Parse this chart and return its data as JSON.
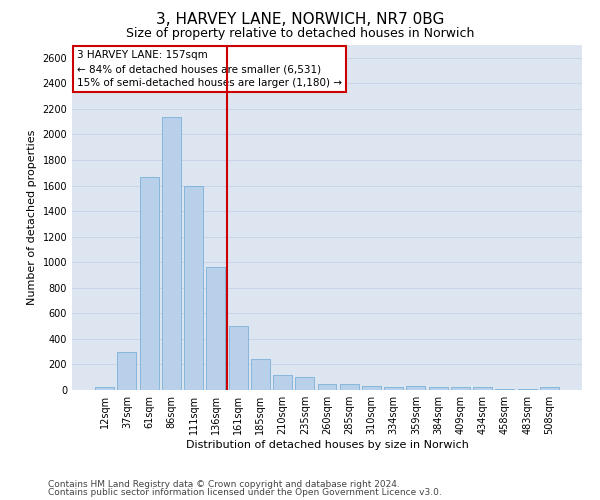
{
  "title_line1": "3, HARVEY LANE, NORWICH, NR7 0BG",
  "title_line2": "Size of property relative to detached houses in Norwich",
  "xlabel": "Distribution of detached houses by size in Norwich",
  "ylabel": "Number of detached properties",
  "categories": [
    "12sqm",
    "37sqm",
    "61sqm",
    "86sqm",
    "111sqm",
    "136sqm",
    "161sqm",
    "185sqm",
    "210sqm",
    "235sqm",
    "260sqm",
    "285sqm",
    "310sqm",
    "334sqm",
    "359sqm",
    "384sqm",
    "409sqm",
    "434sqm",
    "458sqm",
    "483sqm",
    "508sqm"
  ],
  "values": [
    25,
    295,
    1670,
    2140,
    1595,
    960,
    500,
    245,
    120,
    100,
    50,
    50,
    35,
    20,
    30,
    25,
    20,
    20,
    5,
    5,
    25
  ],
  "bar_color": "#b8d0ea",
  "bar_edge_color": "#6aaad4",
  "vline_color": "#cc0000",
  "annotation_text": "3 HARVEY LANE: 157sqm\n← 84% of detached houses are smaller (6,531)\n15% of semi-detached houses are larger (1,180) →",
  "annotation_box_color": "white",
  "annotation_box_edge": "#cc0000",
  "ylim": [
    0,
    2700
  ],
  "yticks": [
    0,
    200,
    400,
    600,
    800,
    1000,
    1200,
    1400,
    1600,
    1800,
    2000,
    2200,
    2400,
    2600
  ],
  "grid_color": "#c8d4e8",
  "bg_color": "#dde6f0",
  "footer_line1": "Contains HM Land Registry data © Crown copyright and database right 2024.",
  "footer_line2": "Contains public sector information licensed under the Open Government Licence v3.0.",
  "title_fontsize": 11,
  "subtitle_fontsize": 9,
  "axis_label_fontsize": 8,
  "tick_fontsize": 7,
  "annotation_fontsize": 7.5,
  "footer_fontsize": 6.5
}
